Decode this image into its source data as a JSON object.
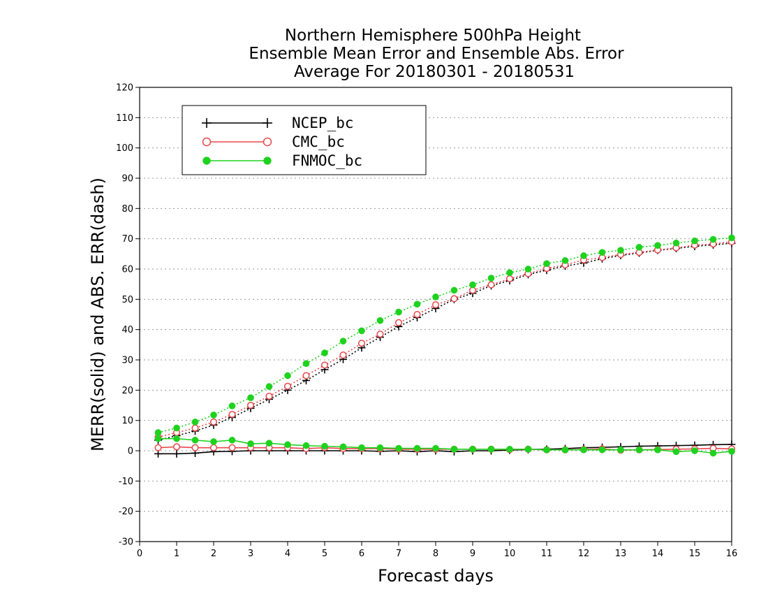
{
  "chart_data": {
    "type": "line",
    "title_lines": [
      "Northern Hemisphere 500hPa Height",
      "Ensemble Mean Error and Ensemble Abs. Error",
      "Average For 20180301 - 20180531"
    ],
    "xlabel": "Forecast days",
    "ylabel": "MERR(solid) and ABS. ERR(dash)",
    "xlim": [
      0,
      16
    ],
    "ylim": [
      -30,
      120
    ],
    "xticks": [
      0,
      1,
      2,
      3,
      4,
      5,
      6,
      7,
      8,
      9,
      10,
      11,
      12,
      13,
      14,
      15,
      16
    ],
    "yticks": [
      -30,
      -20,
      -10,
      0,
      10,
      20,
      30,
      40,
      50,
      60,
      70,
      80,
      90,
      100,
      110,
      120
    ],
    "grid": true,
    "legend_position": "top-left",
    "x": [
      0.5,
      1,
      1.5,
      2,
      2.5,
      3,
      3.5,
      4,
      4.5,
      5,
      5.5,
      6,
      6.5,
      7,
      7.5,
      8,
      8.5,
      9,
      9.5,
      10,
      10.5,
      11,
      11.5,
      12,
      12.5,
      13,
      13.5,
      14,
      14.5,
      15,
      15.5,
      16
    ],
    "series": [
      {
        "name": "NCEP_bc",
        "color": "#000000",
        "marker": "plus",
        "merr": [
          -1.0,
          -1.0,
          -0.8,
          -0.3,
          -0.2,
          0.0,
          0.0,
          0.0,
          0.0,
          0.0,
          0.0,
          0.0,
          -0.2,
          0.0,
          -0.3,
          0.0,
          -0.3,
          0.0,
          0.0,
          0.2,
          0.4,
          0.5,
          0.7,
          1.0,
          1.1,
          1.3,
          1.5,
          1.6,
          1.7,
          1.8,
          2.0,
          2.1
        ],
        "abs_err": [
          3.5,
          5.0,
          6.5,
          8.5,
          11.0,
          14.0,
          17.0,
          20.0,
          23.2,
          26.8,
          30.2,
          34.0,
          37.5,
          41.0,
          44.0,
          47.0,
          50.0,
          52.0,
          54.5,
          56.2,
          58.2,
          59.6,
          61.0,
          62.0,
          63.4,
          64.5,
          65.3,
          66.2,
          66.8,
          67.5,
          68.0,
          68.5
        ]
      },
      {
        "name": "CMC_bc",
        "color": "#e8474c",
        "marker": "open-circle",
        "merr": [
          1.0,
          1.3,
          1.0,
          1.0,
          1.0,
          1.0,
          1.0,
          1.0,
          0.7,
          1.0,
          0.7,
          0.7,
          0.7,
          0.5,
          0.5,
          0.5,
          0.5,
          0.5,
          0.5,
          0.4,
          0.5,
          0.3,
          0.3,
          0.4,
          0.6,
          0.2,
          0.3,
          0.4,
          0.5,
          0.6,
          0.8,
          0.6
        ],
        "abs_err": [
          4.5,
          6.0,
          7.5,
          9.5,
          12.0,
          15.0,
          18.0,
          21.3,
          24.8,
          28.3,
          31.6,
          35.5,
          38.5,
          42.3,
          45.0,
          48.2,
          50.2,
          53.0,
          54.8,
          56.8,
          58.5,
          60.2,
          61.4,
          63.0,
          63.8,
          64.8,
          65.5,
          66.3,
          67.0,
          67.9,
          68.3,
          69.0
        ]
      },
      {
        "name": "FNMOC_bc",
        "color": "#1ed21e",
        "marker": "filled-circle",
        "merr": [
          4.0,
          4.0,
          3.5,
          3.0,
          3.5,
          2.3,
          2.5,
          2.0,
          1.7,
          1.5,
          1.3,
          1.0,
          1.0,
          0.8,
          0.8,
          0.8,
          0.5,
          0.5,
          0.5,
          0.5,
          0.5,
          0.3,
          0.3,
          0.3,
          0.3,
          0.3,
          0.3,
          0.3,
          -0.3,
          0.0,
          -0.8,
          -0.2
        ],
        "abs_err": [
          6.0,
          7.5,
          9.5,
          11.8,
          14.8,
          17.5,
          21.2,
          24.8,
          28.8,
          32.3,
          36.2,
          39.6,
          43.0,
          45.8,
          48.4,
          50.8,
          53.0,
          54.8,
          57.0,
          58.8,
          60.0,
          61.8,
          62.8,
          64.4,
          65.5,
          66.2,
          67.2,
          67.8,
          68.6,
          69.3,
          69.8,
          70.3
        ]
      }
    ]
  }
}
